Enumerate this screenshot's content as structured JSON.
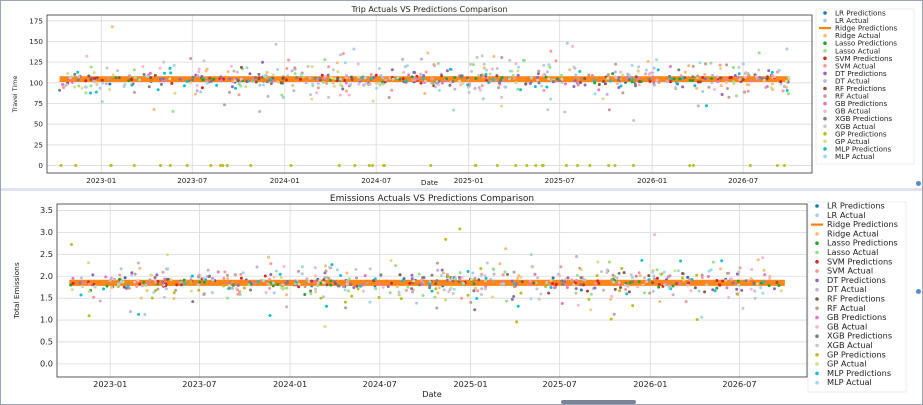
{
  "chart_data": [
    {
      "type": "scatter",
      "title": "Trip Actuals VS Predictions Comparison",
      "xlabel": "Date",
      "ylabel": "Travel Time",
      "x_range": [
        "2022-09-15",
        "2026-11-15"
      ],
      "ylim": [
        -9,
        182
      ],
      "x_ticks": [
        "2023-01",
        "2023-07",
        "2024-01",
        "2024-07",
        "2025-01",
        "2025-07",
        "2026-01",
        "2026-07"
      ],
      "y_ticks": [
        0,
        25,
        50,
        75,
        100,
        125,
        150,
        175
      ],
      "grid": true,
      "legend_position": "right",
      "ridge_band": {
        "center": 104.5,
        "spread": 3.5
      },
      "series": [
        {
          "name": "LR Predictions",
          "color": "#1f77b4",
          "marker": "dot",
          "center": 104,
          "spread": 6
        },
        {
          "name": "LR Actual",
          "color": "#aec7e8",
          "marker": "dot",
          "center": 105,
          "spread": 30
        },
        {
          "name": "Ridge Predictions",
          "color": "#ff7f0e",
          "marker": "line",
          "center": 104.5,
          "spread": 3.5
        },
        {
          "name": "Ridge Actual",
          "color": "#ffbb78",
          "marker": "dot",
          "center": 105,
          "spread": 30
        },
        {
          "name": "Lasso Predictions",
          "color": "#2ca02c",
          "marker": "dot",
          "center": 104,
          "spread": 6
        },
        {
          "name": "Lasso Actual",
          "color": "#98df8a",
          "marker": "dot",
          "center": 105,
          "spread": 30
        },
        {
          "name": "SVM Predictions",
          "color": "#d62728",
          "marker": "dot",
          "center": 104,
          "spread": 6
        },
        {
          "name": "SVM Actual",
          "color": "#ff9896",
          "marker": "dot",
          "center": 105,
          "spread": 30
        },
        {
          "name": "DT Predictions",
          "color": "#9467bd",
          "marker": "dot",
          "center": 104,
          "spread": 18
        },
        {
          "name": "DT Actual",
          "color": "#c5b0d5",
          "marker": "dot",
          "center": 105,
          "spread": 30
        },
        {
          "name": "RF Predictions",
          "color": "#8c564b",
          "marker": "dot",
          "center": 104,
          "spread": 10
        },
        {
          "name": "RF Actual",
          "color": "#c49c94",
          "marker": "dot",
          "center": 105,
          "spread": 30
        },
        {
          "name": "GB Predictions",
          "color": "#e377c2",
          "marker": "dot",
          "center": 104,
          "spread": 10
        },
        {
          "name": "GB Actual",
          "color": "#f7b6d2",
          "marker": "dot",
          "center": 105,
          "spread": 30
        },
        {
          "name": "XGB Predictions",
          "color": "#7f7f7f",
          "marker": "dot",
          "center": 104,
          "spread": 12
        },
        {
          "name": "XGB Actual",
          "color": "#c7c7c7",
          "marker": "dot",
          "center": 105,
          "spread": 30
        },
        {
          "name": "GP Predictions",
          "color": "#bcbd22",
          "marker": "dot",
          "center": 0,
          "spread": 0
        },
        {
          "name": "GP Actual",
          "color": "#dbdb8d",
          "marker": "dot",
          "center": 105,
          "spread": 30
        },
        {
          "name": "MLP Predictions",
          "color": "#17becf",
          "marker": "dot",
          "center": 104,
          "spread": 18
        },
        {
          "name": "MLP Actual",
          "color": "#9edae5",
          "marker": "dot",
          "center": 105,
          "spread": 30
        }
      ]
    },
    {
      "type": "scatter",
      "title": "Emissions Actuals VS Predictions Comparison",
      "xlabel": "Date",
      "ylabel": "Total Emissions",
      "x_range": [
        "2022-09-15",
        "2026-11-15"
      ],
      "ylim": [
        -0.3,
        3.65
      ],
      "x_ticks": [
        "2023-01",
        "2023-07",
        "2024-01",
        "2024-07",
        "2025-01",
        "2025-07",
        "2026-01",
        "2026-07"
      ],
      "y_ticks": [
        0.0,
        0.5,
        1.0,
        1.5,
        2.0,
        2.5,
        3.0,
        3.5
      ],
      "grid": true,
      "legend_position": "right",
      "ridge_band": {
        "center": 1.85,
        "spread": 0.07
      },
      "series": [
        {
          "name": "LR Predictions",
          "color": "#1f77b4",
          "marker": "dot",
          "center": 1.85,
          "spread": 0.12
        },
        {
          "name": "LR Actual",
          "color": "#aec7e8",
          "marker": "dot",
          "center": 1.85,
          "spread": 0.55
        },
        {
          "name": "Ridge Predictions",
          "color": "#ff7f0e",
          "marker": "line",
          "center": 1.85,
          "spread": 0.07
        },
        {
          "name": "Ridge Actual",
          "color": "#ffbb78",
          "marker": "dot",
          "center": 1.85,
          "spread": 0.55
        },
        {
          "name": "Lasso Predictions",
          "color": "#2ca02c",
          "marker": "dot",
          "center": 1.85,
          "spread": 0.15
        },
        {
          "name": "Lasso Actual",
          "color": "#98df8a",
          "marker": "dot",
          "center": 1.85,
          "spread": 0.55
        },
        {
          "name": "SVM Predictions",
          "color": "#d62728",
          "marker": "dot",
          "center": 1.85,
          "spread": 0.12
        },
        {
          "name": "SVM Actual",
          "color": "#ff9896",
          "marker": "dot",
          "center": 1.85,
          "spread": 0.55
        },
        {
          "name": "DT Predictions",
          "color": "#9467bd",
          "marker": "dot",
          "center": 1.85,
          "spread": 0.45
        },
        {
          "name": "DT Actual",
          "color": "#c5b0d5",
          "marker": "dot",
          "center": 1.85,
          "spread": 0.55
        },
        {
          "name": "RF Predictions",
          "color": "#8c564b",
          "marker": "dot",
          "center": 1.85,
          "spread": 0.25
        },
        {
          "name": "RF Actual",
          "color": "#c49c94",
          "marker": "dot",
          "center": 1.85,
          "spread": 0.55
        },
        {
          "name": "GB Predictions",
          "color": "#e377c2",
          "marker": "dot",
          "center": 1.85,
          "spread": 0.25
        },
        {
          "name": "GB Actual",
          "color": "#f7b6d2",
          "marker": "dot",
          "center": 1.85,
          "spread": 0.55
        },
        {
          "name": "XGB Predictions",
          "color": "#7f7f7f",
          "marker": "dot",
          "center": 1.85,
          "spread": 0.3
        },
        {
          "name": "XGB Actual",
          "color": "#c7c7c7",
          "marker": "dot",
          "center": 1.85,
          "spread": 0.55
        },
        {
          "name": "GP Predictions",
          "color": "#bcbd22",
          "marker": "dot",
          "center": 1.7,
          "spread": 0.8
        },
        {
          "name": "GP Actual",
          "color": "#dbdb8d",
          "marker": "dot",
          "center": 1.85,
          "spread": 0.55
        },
        {
          "name": "MLP Predictions",
          "color": "#17becf",
          "marker": "dot",
          "center": 1.85,
          "spread": 0.45
        },
        {
          "name": "MLP Actual",
          "color": "#9edae5",
          "marker": "dot",
          "center": 1.85,
          "spread": 0.55
        }
      ]
    }
  ]
}
